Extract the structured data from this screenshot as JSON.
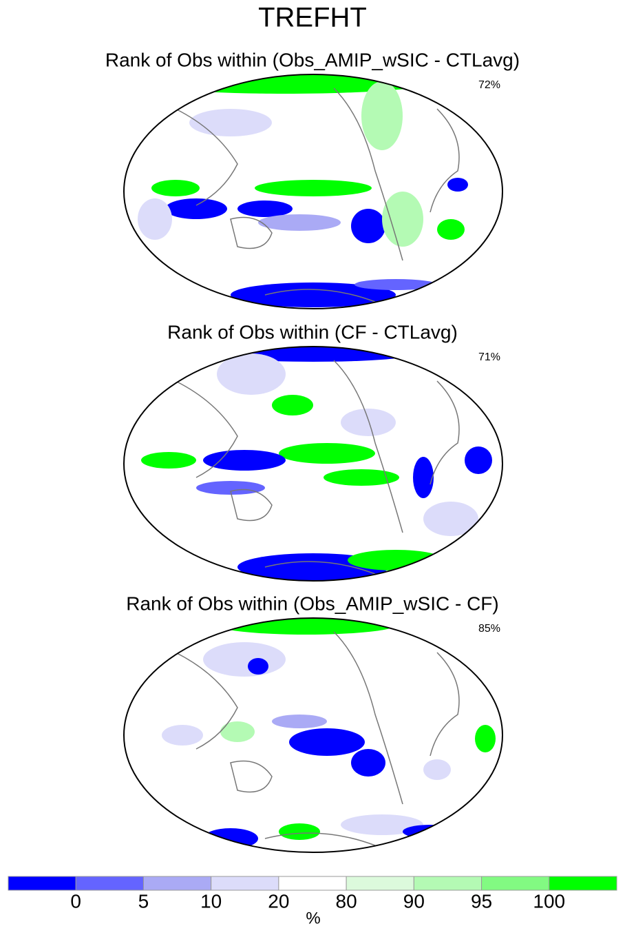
{
  "title": "TREFHT",
  "panels": [
    {
      "title": "Rank of Obs within (Obs_AMIP_wSIC - CTLavg)",
      "percent": "72%"
    },
    {
      "title": "Rank of Obs within (CF - CTLavg)",
      "percent": "71%"
    },
    {
      "title": "Rank of Obs within (Obs_AMIP_wSIC - CF)",
      "percent": "85%"
    }
  ],
  "colorbar": {
    "levels": [
      0,
      5,
      10,
      20,
      80,
      90,
      95,
      100
    ],
    "colors": [
      "#0000ff",
      "#6464ff",
      "#aaaaf5",
      "#dcdcfa",
      "#ffffff",
      "#dcfadc",
      "#b4fab4",
      "#82fa82",
      "#00ff00"
    ],
    "label": "%"
  }
}
